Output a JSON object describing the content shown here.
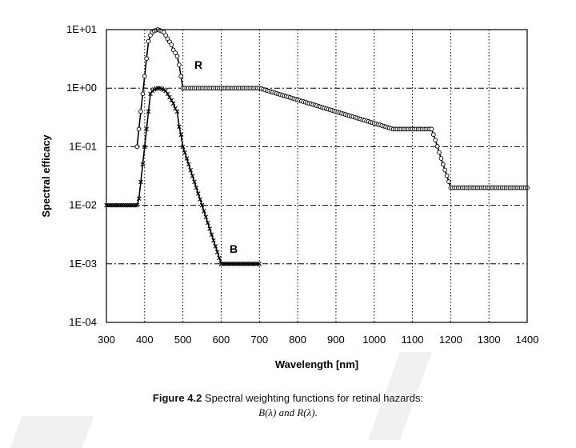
{
  "caption": {
    "figure_label": "Figure 4.2",
    "text": "Spectral weighting functions for retinal hazards:",
    "line2": "B(λ) and R(λ)."
  },
  "chart_data": {
    "type": "line",
    "xlabel": "Wavelength [nm]",
    "ylabel": "Spectral efficacy",
    "xlim": [
      300,
      1400
    ],
    "ylim": [
      0.0001,
      10
    ],
    "yscale": "log",
    "grid": true,
    "x_ticks": [
      "300",
      "400",
      "500",
      "600",
      "700",
      "800",
      "900",
      "1000",
      "1100",
      "1200",
      "1300",
      "1400"
    ],
    "y_ticks": [
      "1E-04",
      "1E-03",
      "1E-02",
      "1E-01",
      "1E+00",
      "1E+01"
    ],
    "series": [
      {
        "name": "R",
        "marker": "open-circle",
        "x": [
          380,
          385,
          390,
          395,
          400,
          405,
          410,
          415,
          420,
          425,
          430,
          435,
          440,
          445,
          450,
          455,
          460,
          465,
          470,
          475,
          480,
          485,
          490,
          495,
          500,
          700,
          1050,
          1150,
          1160,
          1170,
          1180,
          1190,
          1200,
          1400
        ],
        "y": [
          0.1,
          0.2,
          0.4,
          0.8,
          1.6,
          3.2,
          6.3,
          8.0,
          9.0,
          9.5,
          9.8,
          10.0,
          9.7,
          9.4,
          9.0,
          8.0,
          7.0,
          6.2,
          5.5,
          4.5,
          4.0,
          3.5,
          2.5,
          1.6,
          1.0,
          1.0,
          0.2,
          0.2,
          0.13,
          0.08,
          0.05,
          0.032,
          0.02,
          0.02
        ]
      },
      {
        "name": "B",
        "marker": "cross",
        "x": [
          300,
          305,
          310,
          315,
          320,
          325,
          330,
          335,
          340,
          345,
          350,
          355,
          360,
          365,
          370,
          375,
          380,
          385,
          390,
          395,
          400,
          405,
          410,
          415,
          420,
          425,
          430,
          435,
          440,
          445,
          450,
          455,
          460,
          465,
          470,
          475,
          480,
          485,
          490,
          495,
          500,
          600,
          700
        ],
        "y": [
          0.01,
          0.01,
          0.01,
          0.01,
          0.01,
          0.01,
          0.01,
          0.01,
          0.01,
          0.01,
          0.01,
          0.01,
          0.01,
          0.01,
          0.01,
          0.01,
          0.01,
          0.013,
          0.025,
          0.05,
          0.1,
          0.2,
          0.4,
          0.8,
          0.9,
          0.95,
          0.98,
          1.0,
          1.0,
          0.97,
          0.94,
          0.9,
          0.8,
          0.7,
          0.62,
          0.55,
          0.45,
          0.4,
          0.22,
          0.16,
          0.1,
          0.001,
          0.001
        ]
      }
    ]
  }
}
